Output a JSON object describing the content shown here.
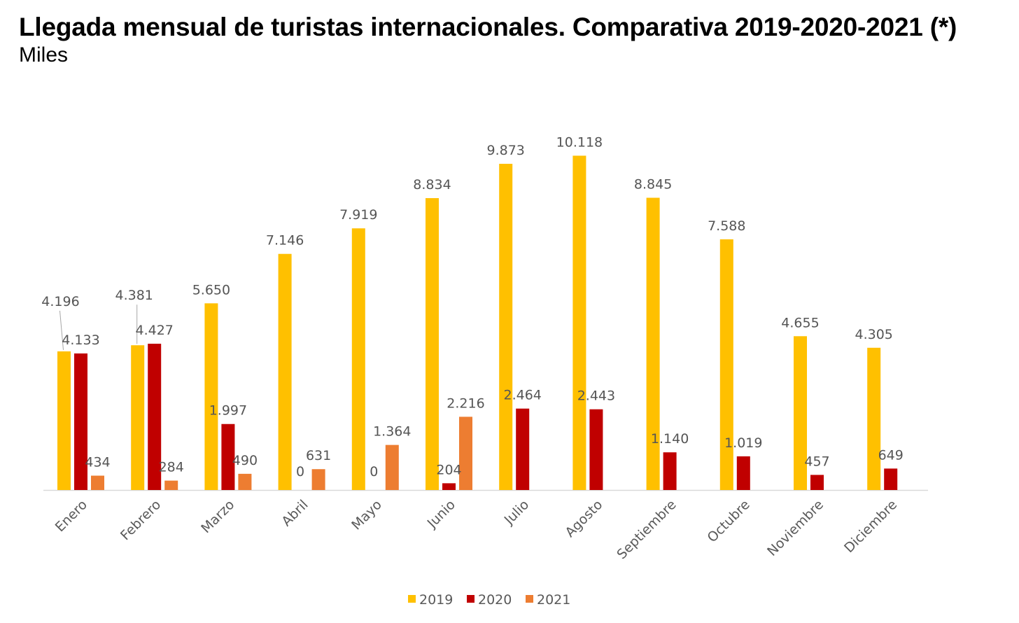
{
  "header": {
    "title": "Llegada mensual de turistas internacionales. Comparativa 2019-2020-2021 (*)",
    "subtitle": "Miles"
  },
  "chart_data": {
    "type": "bar",
    "categories": [
      "Enero",
      "Febrero",
      "Marzo",
      "Abril",
      "Mayo",
      "Junio",
      "Julio",
      "Agosto",
      "Septiembre",
      "Octubre",
      "Noviembre",
      "Diciembre"
    ],
    "series": [
      {
        "name": "2019",
        "color": "#FFC000",
        "values": [
          4196,
          4381,
          5650,
          7146,
          7919,
          8834,
          9873,
          10118,
          8845,
          7588,
          4655,
          4305
        ],
        "labels": [
          "4.196",
          "4.381",
          "5.650",
          "7.146",
          "7.919",
          "8.834",
          "9.873",
          "10.118",
          "8.845",
          "7.588",
          "4.655",
          "4.305"
        ]
      },
      {
        "name": "2020",
        "color": "#C00000",
        "values": [
          4133,
          4427,
          1997,
          0,
          0,
          204,
          2464,
          2443,
          1140,
          1019,
          457,
          649
        ],
        "labels": [
          "4.133",
          "4.427",
          "1.997",
          "0",
          "0",
          "204",
          "2.464",
          "2.443",
          "1.140",
          "1.019",
          "457",
          "649"
        ]
      },
      {
        "name": "2021",
        "color": "#ED7D31",
        "values": [
          434,
          284,
          490,
          631,
          1364,
          2216,
          null,
          null,
          null,
          null,
          null,
          null
        ],
        "labels": [
          "434",
          "284",
          "490",
          "631",
          "1.364",
          "2.216",
          null,
          null,
          null,
          null,
          null,
          null
        ]
      }
    ],
    "ylim": [
      0,
      10500
    ],
    "grid": false,
    "legend_position": "bottom",
    "xlabel": "",
    "ylabel": ""
  }
}
